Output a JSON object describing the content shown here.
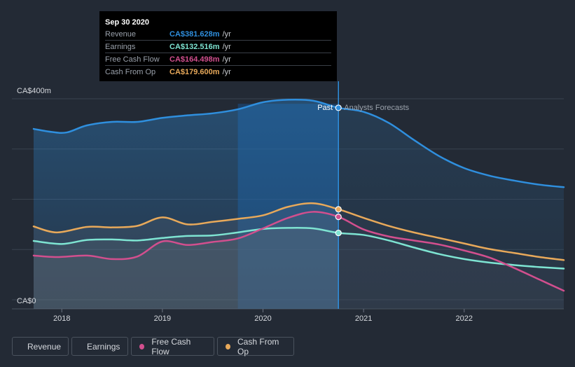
{
  "chart_data": {
    "type": "area",
    "y_axis": {
      "min": 0,
      "max": 400,
      "top_label": "CA$400m",
      "bottom_label": "CA$0",
      "gridlines": [
        0,
        100,
        200,
        300,
        400
      ]
    },
    "x_axis": {
      "range": [
        2017.72,
        2022.99
      ],
      "ticks": [
        2018,
        2019,
        2020,
        2021,
        2022
      ],
      "tick_labels": [
        "2018",
        "2019",
        "2020",
        "2021",
        "2022"
      ]
    },
    "divider": {
      "x": 2020.75,
      "past_label": "Past",
      "forecast_label": "Analysts Forecasts"
    },
    "highlight_band": [
      2019.75,
      2020.75
    ],
    "series": [
      {
        "key": "revenue",
        "name": "Revenue",
        "color": "#2f8fde",
        "points": [
          [
            2017.72,
            340
          ],
          [
            2017.9,
            334
          ],
          [
            2018.05,
            333
          ],
          [
            2018.25,
            347
          ],
          [
            2018.5,
            354
          ],
          [
            2018.75,
            354
          ],
          [
            2019.0,
            362
          ],
          [
            2019.25,
            367
          ],
          [
            2019.5,
            371
          ],
          [
            2019.75,
            379
          ],
          [
            2020.0,
            393
          ],
          [
            2020.25,
            398
          ],
          [
            2020.5,
            396
          ],
          [
            2020.75,
            382
          ],
          [
            2021.0,
            374
          ],
          [
            2021.25,
            352
          ],
          [
            2021.5,
            318
          ],
          [
            2021.75,
            286
          ],
          [
            2022.0,
            262
          ],
          [
            2022.25,
            247
          ],
          [
            2022.5,
            237
          ],
          [
            2022.75,
            229
          ],
          [
            2022.99,
            224
          ]
        ]
      },
      {
        "key": "earnings",
        "name": "Earnings",
        "color": "#7ee4d2",
        "points": [
          [
            2017.72,
            117
          ],
          [
            2018.0,
            111
          ],
          [
            2018.25,
            119
          ],
          [
            2018.5,
            120
          ],
          [
            2018.75,
            118
          ],
          [
            2019.0,
            123
          ],
          [
            2019.25,
            127
          ],
          [
            2019.5,
            128
          ],
          [
            2019.75,
            134
          ],
          [
            2020.0,
            141
          ],
          [
            2020.25,
            143
          ],
          [
            2020.5,
            142
          ],
          [
            2020.75,
            133
          ],
          [
            2021.0,
            129
          ],
          [
            2021.25,
            118
          ],
          [
            2021.5,
            104
          ],
          [
            2021.75,
            91
          ],
          [
            2022.0,
            81
          ],
          [
            2022.25,
            74
          ],
          [
            2022.5,
            69
          ],
          [
            2022.75,
            65
          ],
          [
            2022.99,
            62
          ]
        ]
      },
      {
        "key": "fcf",
        "name": "Free Cash Flow",
        "color": "#d24f8e",
        "points": [
          [
            2017.72,
            88
          ],
          [
            2017.95,
            85
          ],
          [
            2018.25,
            88
          ],
          [
            2018.5,
            81
          ],
          [
            2018.75,
            86
          ],
          [
            2019.0,
            116
          ],
          [
            2019.25,
            109
          ],
          [
            2019.5,
            115
          ],
          [
            2019.75,
            122
          ],
          [
            2020.0,
            142
          ],
          [
            2020.25,
            163
          ],
          [
            2020.5,
            175
          ],
          [
            2020.75,
            165
          ],
          [
            2021.0,
            140
          ],
          [
            2021.25,
            126
          ],
          [
            2021.5,
            118
          ],
          [
            2021.75,
            110
          ],
          [
            2022.0,
            98
          ],
          [
            2022.25,
            84
          ],
          [
            2022.5,
            63
          ],
          [
            2022.75,
            40
          ],
          [
            2022.99,
            18
          ]
        ]
      },
      {
        "key": "cfo",
        "name": "Cash From Op",
        "color": "#e8a95a",
        "points": [
          [
            2017.72,
            146
          ],
          [
            2017.95,
            134
          ],
          [
            2018.25,
            145
          ],
          [
            2018.5,
            144
          ],
          [
            2018.75,
            147
          ],
          [
            2019.0,
            164
          ],
          [
            2019.25,
            150
          ],
          [
            2019.5,
            155
          ],
          [
            2019.75,
            161
          ],
          [
            2020.0,
            168
          ],
          [
            2020.25,
            185
          ],
          [
            2020.5,
            192
          ],
          [
            2020.75,
            180
          ],
          [
            2021.0,
            163
          ],
          [
            2021.25,
            147
          ],
          [
            2021.5,
            134
          ],
          [
            2021.75,
            123
          ],
          [
            2022.0,
            112
          ],
          [
            2022.25,
            101
          ],
          [
            2022.5,
            93
          ],
          [
            2022.75,
            85
          ],
          [
            2022.99,
            79
          ]
        ]
      }
    ]
  },
  "tooltip": {
    "date": "Sep 30 2020",
    "rows": [
      {
        "label": "Revenue",
        "value": "CA$381.628m",
        "unit": "/yr",
        "color": "#2f8fde"
      },
      {
        "label": "Earnings",
        "value": "CA$132.516m",
        "unit": "/yr",
        "color": "#7ee4d2"
      },
      {
        "label": "Free Cash Flow",
        "value": "CA$164.498m",
        "unit": "/yr",
        "color": "#d24f8e"
      },
      {
        "label": "Cash From Op",
        "value": "CA$179.600m",
        "unit": "/yr",
        "color": "#e8a95a"
      }
    ]
  },
  "legend": [
    {
      "label": "Revenue",
      "color": "#2f8fde"
    },
    {
      "label": "Earnings",
      "color": "#7ee4d2"
    },
    {
      "label": "Free Cash Flow",
      "color": "#d24f8e"
    },
    {
      "label": "Cash From Op",
      "color": "#e8a95a"
    }
  ]
}
